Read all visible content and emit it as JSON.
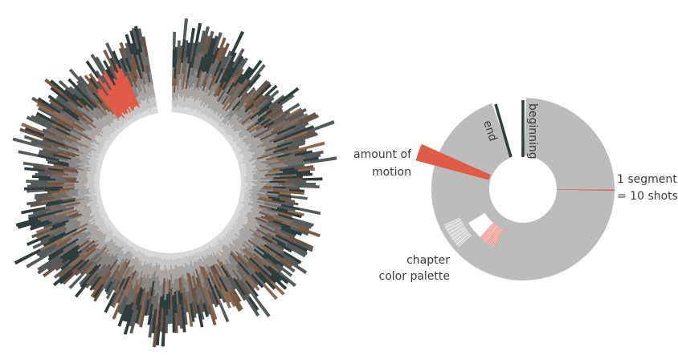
{
  "legend": {
    "amount_of_motion_line1": "amount of",
    "amount_of_motion_line2": "motion",
    "end": "end",
    "beginning": "beginning",
    "segment_line1": "1 segment",
    "segment_line2": "= 10 shots",
    "chapter_line1": "chapter",
    "chapter_line2": "color palette"
  },
  "colors": {
    "gray": "#bcbcbc",
    "highlight": "#e05a48",
    "dark": "#2f3d3c",
    "brown": "#7a5a44",
    "mid_gray": "#555a5b",
    "light_gray": "#cfcfcf"
  }
}
